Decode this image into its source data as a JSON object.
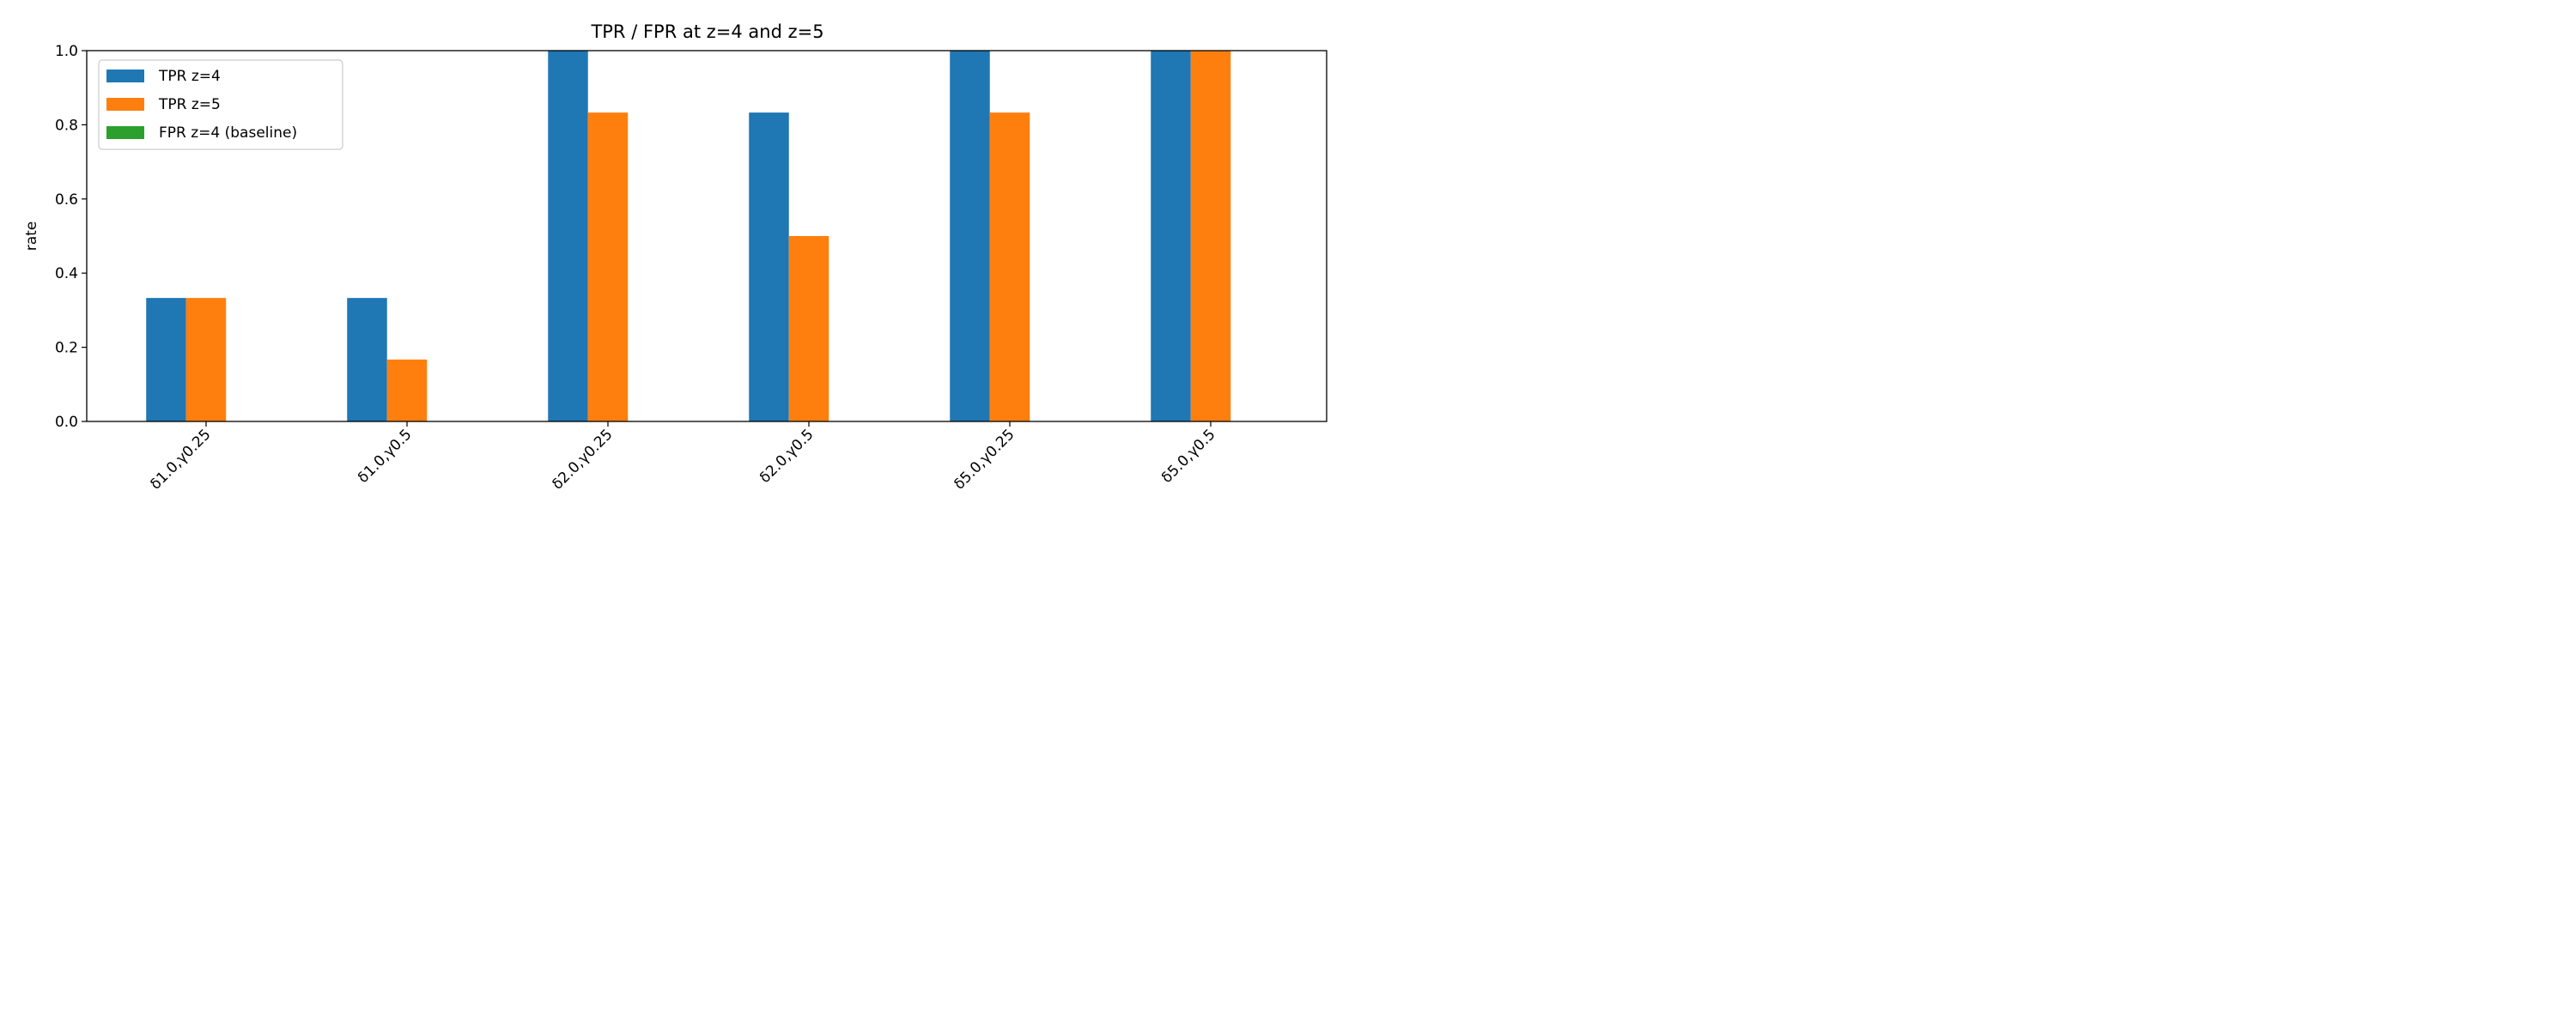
{
  "chart_data": {
    "type": "bar",
    "title": "TPR / FPR at z=4 and z=5",
    "xlabel": "",
    "ylabel": "rate",
    "ylim": [
      0.0,
      1.0
    ],
    "yticks": [
      "0.0",
      "0.2",
      "0.4",
      "0.6",
      "0.8",
      "1.0"
    ],
    "categories": [
      "δ1.0,γ0.25",
      "δ1.0,γ0.5",
      "δ2.0,γ0.25",
      "δ2.0,γ0.5",
      "δ5.0,γ0.25",
      "δ5.0,γ0.5"
    ],
    "series": [
      {
        "name": "TPR z=4",
        "color": "#1f77b4",
        "values": [
          0.333,
          0.333,
          1.0,
          0.833,
          1.0,
          1.0
        ]
      },
      {
        "name": "TPR z=5",
        "color": "#ff7f0e",
        "values": [
          0.333,
          0.167,
          0.833,
          0.5,
          0.833,
          1.0
        ]
      },
      {
        "name": "FPR z=4 (baseline)",
        "color": "#2ca02c",
        "values": [
          0.0,
          0.0,
          0.0,
          0.0,
          0.0,
          0.0
        ]
      }
    ],
    "legend_position": "top-left",
    "grid": false
  }
}
